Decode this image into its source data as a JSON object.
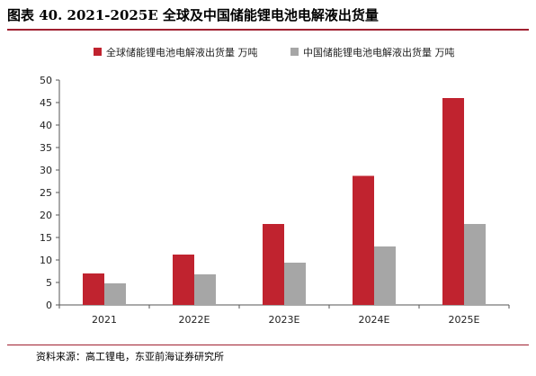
{
  "title": "图表 40. 2021-2025E 全球及中国储能锂电池电解液出货量",
  "source": "资料来源：高工锂电，东亚前海证券研究所",
  "chart_data": {
    "type": "bar",
    "categories": [
      "2021",
      "2022E",
      "2023E",
      "2024E",
      "2025E"
    ],
    "series": [
      {
        "name": "全球储能锂电池电解液出货量 万吨",
        "color": "#c0232f",
        "values": [
          7.0,
          11.2,
          18.0,
          28.7,
          46.0
        ]
      },
      {
        "name": "中国储能锂电池电解液出货量 万吨",
        "color": "#a6a6a6",
        "values": [
          4.8,
          6.8,
          9.4,
          13.0,
          18.0
        ]
      }
    ],
    "ylim": [
      0,
      50
    ],
    "yticks": [
      0,
      5,
      10,
      15,
      20,
      25,
      30,
      35,
      40,
      45,
      50
    ],
    "legend_position": "top",
    "grid": false
  }
}
